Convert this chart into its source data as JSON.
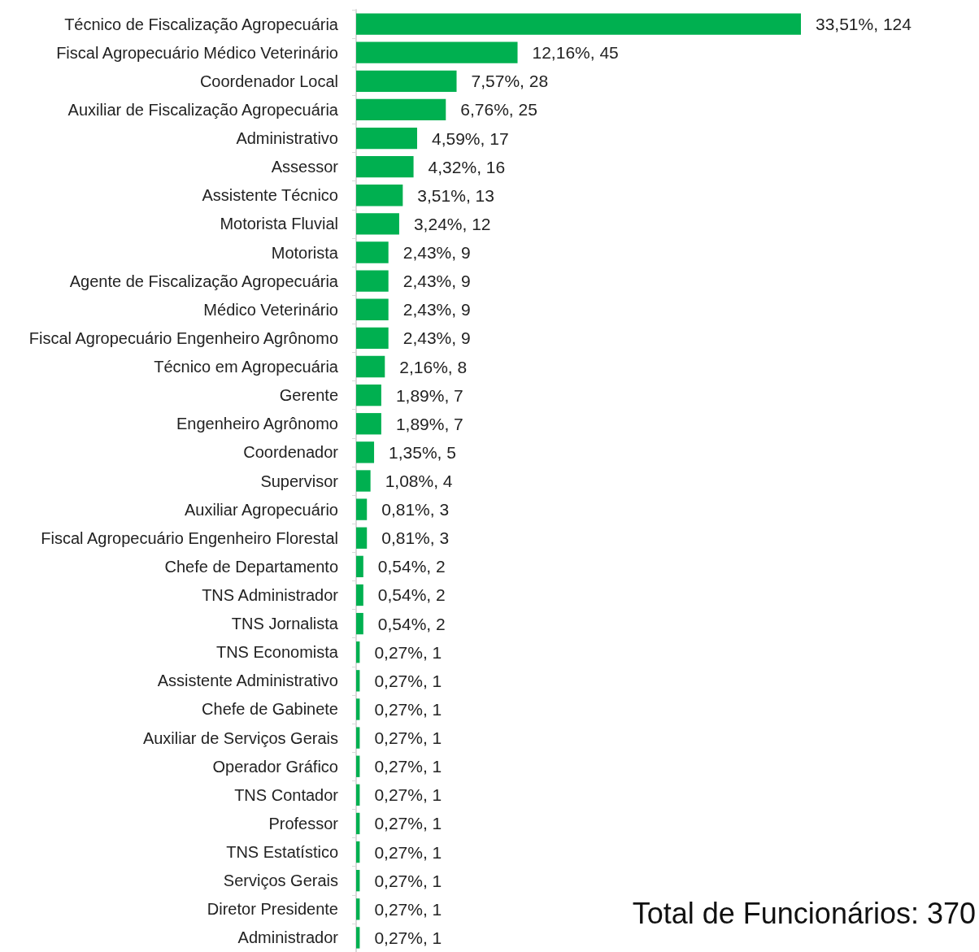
{
  "chart_data": {
    "type": "bar",
    "orientation": "horizontal",
    "color": "#00b050",
    "categories": [
      "Técnico de Fiscalização Agropecuária",
      "Fiscal Agropecuário Médico Veterinário",
      "Coordenador Local",
      "Auxiliar de Fiscalização Agropecuária",
      "Administrativo",
      "Assessor",
      "Assistente Técnico",
      "Motorista Fluvial",
      "Motorista",
      "Agente de Fiscalização Agropecuária",
      "Médico Veterinário",
      "Fiscal Agropecuário Engenheiro Agrônomo",
      "Técnico em Agropecuária",
      "Gerente",
      "Engenheiro Agrônomo",
      "Coordenador",
      "Supervisor",
      "Auxiliar Agropecuário",
      "Fiscal Agropecuário Engenheiro Florestal",
      "Chefe de Departamento",
      "TNS Administrador",
      "TNS Jornalista",
      "TNS Economista",
      "Assistente Administrativo",
      "Chefe de Gabinete",
      "Auxiliar de Serviços Gerais",
      "Operador Gráfico",
      "TNS Contador",
      "Professor",
      "TNS Estatístico",
      "Serviços Gerais",
      "Diretor Presidente",
      "Administrador"
    ],
    "values": [
      124,
      45,
      28,
      25,
      17,
      16,
      13,
      12,
      9,
      9,
      9,
      9,
      8,
      7,
      7,
      5,
      4,
      3,
      3,
      2,
      2,
      2,
      1,
      1,
      1,
      1,
      1,
      1,
      1,
      1,
      1,
      1,
      1
    ],
    "value_labels": [
      "33,51%, 124",
      "12,16%, 45",
      "7,57%, 28",
      "6,76%, 25",
      "4,59%, 17",
      "4,32%, 16",
      "3,51%, 13",
      "3,24%, 12",
      "2,43%, 9",
      "2,43%, 9",
      "2,43%, 9",
      "2,43%, 9",
      "2,16%, 8",
      "1,89%, 7",
      "1,89%, 7",
      "1,35%, 5",
      "1,08%, 4",
      "0,81%, 3",
      "0,81%, 3",
      "0,54%, 2",
      "0,54%, 2",
      "0,54%, 2",
      "0,27%, 1",
      "0,27%, 1",
      "0,27%, 1",
      "0,27%, 1",
      "0,27%, 1",
      "0,27%, 1",
      "0,27%, 1",
      "0,27%, 1",
      "0,27%, 1",
      "0,27%, 1",
      "0,27%, 1"
    ],
    "annotations": [
      "Total de Funcionários: 370"
    ]
  }
}
